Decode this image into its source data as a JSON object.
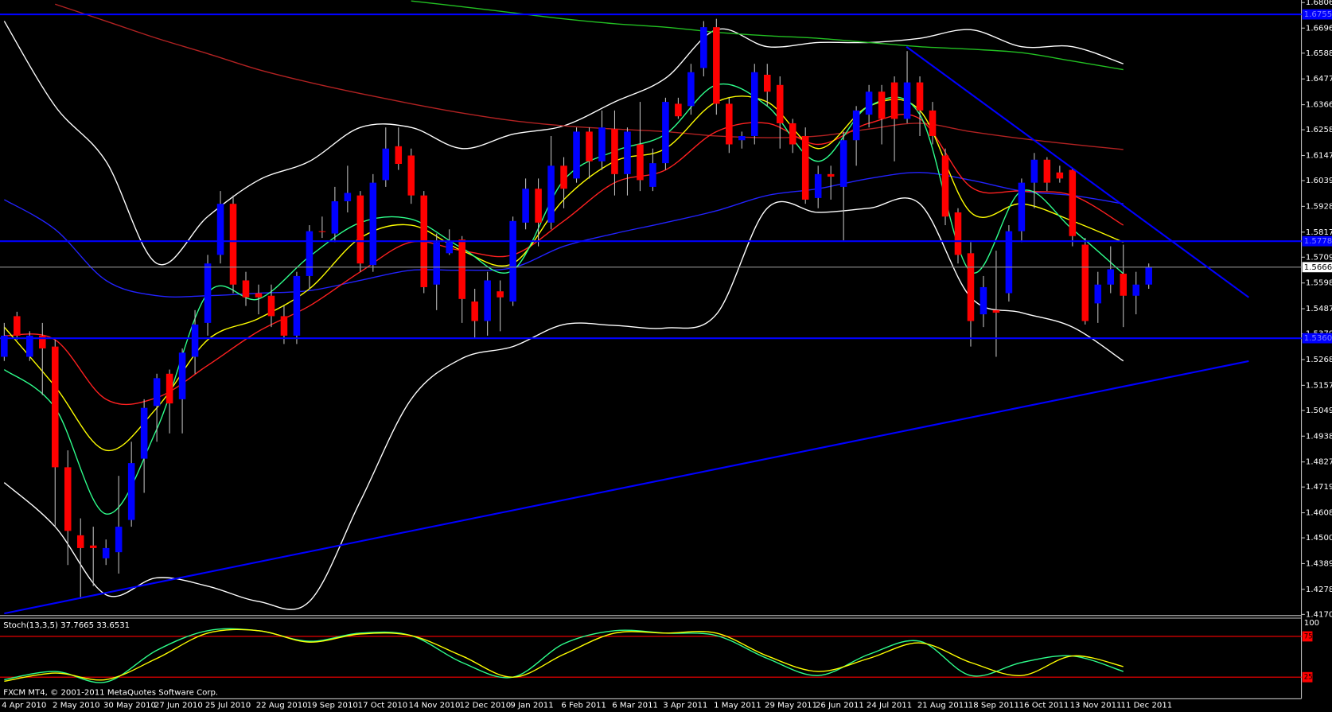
{
  "footer": "FXCM MT4, © 2001-2011 MetaQuotes Software Corp.",
  "chart_data": [
    {
      "type": "candlestick",
      "categories": [
        "4 Apr 2010",
        null,
        null,
        null,
        "2 May 2010",
        null,
        null,
        null,
        "30 May 2010",
        null,
        null,
        null,
        "27 Jun 2010",
        null,
        null,
        null,
        "25 Jul 2010",
        null,
        null,
        null,
        "22 Aug 2010",
        null,
        null,
        null,
        "19 Sep 2010",
        null,
        null,
        null,
        "17 Oct 2010",
        null,
        null,
        null,
        "14 Nov 2010",
        null,
        null,
        null,
        "12 Dec 2010",
        null,
        null,
        null,
        "9 Jan 2011",
        null,
        null,
        null,
        "6 Feb 2011",
        null,
        null,
        null,
        "6 Mar 2011",
        null,
        null,
        null,
        "3 Apr 2011",
        null,
        null,
        null,
        "1 May 2011",
        null,
        null,
        null,
        "29 May 2011",
        null,
        null,
        null,
        "26 Jun 2011",
        null,
        null,
        null,
        "24 Jul 2011",
        null,
        null,
        null,
        "21 Aug 2011",
        null,
        null,
        null,
        "18 Sep 2011",
        null,
        null,
        null,
        "16 Oct 2011",
        null,
        null,
        null,
        "13 Nov 2011",
        null,
        null,
        null,
        "11 Dec 2011",
        null,
        null
      ],
      "open": [
        1.528,
        1.5455,
        1.528,
        1.5371,
        1.5324,
        1.4804,
        1.4511,
        1.4467,
        1.4412,
        1.4438,
        1.4577,
        1.4841,
        1.5068,
        1.5207,
        1.5097,
        1.528,
        1.5426,
        1.5719,
        1.5939,
        1.5609,
        1.5554,
        1.5543,
        1.5455,
        1.5371,
        1.5628,
        1.5821,
        1.5811,
        1.595,
        1.5975,
        1.5675,
        1.6041,
        1.6187,
        1.6147,
        1.5975,
        1.5591,
        1.5726,
        1.5785,
        1.5518,
        1.5434,
        1.5562,
        1.5518,
        1.5858,
        1.6004,
        1.5858,
        1.6103,
        1.6048,
        1.625,
        1.6122,
        1.6261,
        1.6067,
        1.6195,
        1.6012,
        1.6114,
        1.637,
        1.636,
        1.6524,
        1.67,
        1.637,
        1.6213,
        1.6231,
        1.6495,
        1.6451,
        1.6286,
        1.6231,
        1.5964,
        1.6067,
        1.6012,
        1.6213,
        1.6323,
        1.6422,
        1.6462,
        1.6305,
        1.6462,
        1.6341,
        1.6147,
        1.5902,
        1.5726,
        1.5463,
        1.5481,
        1.5554,
        1.5821,
        1.603,
        1.6129,
        1.6074,
        1.6085,
        1.5763,
        1.551,
        1.5591,
        1.5638,
        1.5543,
        1.5591
      ],
      "high": [
        1.5426,
        1.5474,
        1.539,
        1.5426,
        1.5353,
        1.4877,
        1.4584,
        1.4548,
        1.4493,
        1.4767,
        1.4914,
        1.5097,
        1.5207,
        1.5225,
        1.5316,
        1.5481,
        1.5719,
        1.5994,
        1.5975,
        1.5646,
        1.5591,
        1.5591,
        1.5499,
        1.5646,
        1.5847,
        1.5884,
        1.6012,
        1.6103,
        1.5994,
        1.6067,
        1.6268,
        1.6268,
        1.6177,
        1.5994,
        1.5811,
        1.5829,
        1.58,
        1.5573,
        1.5646,
        1.5609,
        1.5884,
        1.6048,
        1.6048,
        1.6231,
        1.614,
        1.6268,
        1.6268,
        1.6341,
        1.6341,
        1.6268,
        1.6378,
        1.6177,
        1.6396,
        1.6396,
        1.6542,
        1.6726,
        1.6736,
        1.6396,
        1.625,
        1.6542,
        1.6542,
        1.6488,
        1.6305,
        1.6268,
        1.6103,
        1.6103,
        1.625,
        1.636,
        1.6451,
        1.6451,
        1.6488,
        1.6597,
        1.6488,
        1.6378,
        1.6177,
        1.592,
        1.5774,
        1.5628,
        1.5737,
        1.5847,
        1.6048,
        1.6158,
        1.614,
        1.6103,
        1.6092,
        1.5792,
        1.5646,
        1.5756,
        1.5763,
        1.5646,
        1.5682
      ],
      "low": [
        1.5262,
        1.5353,
        1.5262,
        1.5115,
        1.4548,
        1.4383,
        1.4237,
        1.4292,
        1.4383,
        1.4346,
        1.4548,
        1.4694,
        1.4914,
        1.495,
        1.495,
        1.5207,
        1.5371,
        1.5682,
        1.5554,
        1.5499,
        1.5463,
        1.5408,
        1.5335,
        1.5335,
        1.5573,
        1.5792,
        1.5774,
        1.5902,
        1.5646,
        1.5646,
        1.6012,
        1.6085,
        1.5939,
        1.5554,
        1.5481,
        1.5719,
        1.5426,
        1.536,
        1.5371,
        1.539,
        1.5499,
        1.5829,
        1.5756,
        1.5829,
        1.592,
        1.603,
        1.6048,
        1.6085,
        1.5975,
        1.5975,
        1.5994,
        1.5994,
        1.6085,
        1.6305,
        1.6323,
        1.6488,
        1.6323,
        1.6158,
        1.6177,
        1.6195,
        1.636,
        1.6177,
        1.6158,
        1.5939,
        1.592,
        1.5957,
        1.5781,
        1.6103,
        1.6268,
        1.6195,
        1.6122,
        1.6286,
        1.6231,
        1.6195,
        1.5847,
        1.5682,
        1.5324,
        1.5408,
        1.528,
        1.5518,
        1.5774,
        1.592,
        1.5994,
        1.603,
        1.5756,
        1.5419,
        1.5426,
        1.5554,
        1.5408,
        1.5463,
        1.5573
      ],
      "close": [
        1.5371,
        1.5371,
        1.5371,
        1.5316,
        1.4804,
        1.453,
        1.4456,
        1.4456,
        1.4456,
        1.4548,
        1.4822,
        1.506,
        1.5188,
        1.5079,
        1.5298,
        1.5419,
        1.5682,
        1.5939,
        1.5591,
        1.5536,
        1.5536,
        1.5455,
        1.5371,
        1.5628,
        1.5821,
        1.5818,
        1.595,
        1.5986,
        1.5682,
        1.603,
        1.6177,
        1.6111,
        1.5975,
        1.558,
        1.5774,
        1.5774,
        1.5529,
        1.5434,
        1.5609,
        1.5536,
        1.5865,
        1.6004,
        1.5858,
        1.6103,
        1.6004,
        1.625,
        1.6122,
        1.6268,
        1.6067,
        1.625,
        1.6041,
        1.6114,
        1.6378,
        1.6316,
        1.6506,
        1.67,
        1.637,
        1.6195,
        1.6231,
        1.6506,
        1.6422,
        1.6286,
        1.6195,
        1.5957,
        1.6067,
        1.6056,
        1.6213,
        1.6341,
        1.6422,
        1.6305,
        1.6305,
        1.6462,
        1.6341,
        1.6231,
        1.5884,
        1.5719,
        1.5434,
        1.558,
        1.547,
        1.5821,
        1.603,
        1.6129,
        1.603,
        1.6048,
        1.58,
        1.5434,
        1.5591,
        1.5657,
        1.5543,
        1.5591,
        1.5666
      ],
      "up_color": "#0000ff",
      "down_color": "#ff0000",
      "wick_color": "#bfbfbf",
      "indicator_x": [
        "4 Apr 2010",
        "2 May 2010",
        "30 May 2010",
        "27 Jun 2010",
        "25 Jul 2010",
        "22 Aug 2010",
        "19 Sep 2010",
        "17 Oct 2010",
        "14 Nov 2010",
        "12 Dec 2010",
        "9 Jan 2011",
        "6 Feb 2011",
        "6 Mar 2011",
        "3 Apr 2011",
        "1 May 2011",
        "29 May 2011",
        "26 Jun 2011",
        "24 Jul 2011",
        "21 Aug 2011",
        "18 Sep 2011",
        "16 Oct 2011",
        "13 Nov 2011",
        "11 Dec 2011"
      ],
      "indicators": [
        {
          "color": "#ffffff",
          "values": [
            1.6726,
            1.636,
            1.6122,
            1.5682,
            1.5884,
            1.6041,
            1.6122,
            1.6268,
            1.6268,
            1.6177,
            1.6239,
            1.6275,
            1.6378,
            1.648,
            1.6689,
            1.6616,
            1.6634,
            1.6634,
            1.6652,
            1.6689,
            1.6616,
            1.6616,
            1.6542
          ]
        },
        {
          "color": "#ffffff",
          "values": [
            1.4738,
            1.4548,
            1.4255,
            1.4328,
            1.4292,
            1.4226,
            1.4226,
            1.4658,
            1.5097,
            1.5273,
            1.5324,
            1.5419,
            1.5415,
            1.5404,
            1.5463,
            1.592,
            1.5902,
            1.592,
            1.5939,
            1.5536,
            1.547,
            1.5408,
            1.5262
          ]
        },
        {
          "color": "#2222ff",
          "values": [
            1.5957,
            1.5829,
            1.5609,
            1.5543,
            1.5543,
            1.5554,
            1.5565,
            1.5609,
            1.5653,
            1.5653,
            1.5664,
            1.5756,
            1.5811,
            1.5858,
            1.5909,
            1.5975,
            1.6004,
            1.6048,
            1.6074,
            1.6041,
            1.5994,
            1.5975,
            1.5939
          ]
        },
        {
          "color": "#b22222",
          "values": [
            null,
            1.6799,
            1.6726,
            1.6652,
            1.6586,
            1.6517,
            1.6462,
            1.6414,
            1.637,
            1.633,
            1.6297,
            1.6275,
            1.6261,
            1.625,
            1.6231,
            1.6224,
            1.6231,
            1.6261,
            1.6286,
            1.625,
            1.622,
            1.6195,
            1.6173
          ]
        },
        {
          "color": "#22c022",
          "values": [
            null,
            null,
            null,
            null,
            null,
            null,
            null,
            null,
            1.6813,
            1.6788,
            1.6762,
            1.6736,
            1.6715,
            1.67,
            1.6678,
            1.6663,
            1.6652,
            1.6634,
            1.6616,
            1.6605,
            1.659,
            1.6554,
            1.6517
          ]
        },
        {
          "color": "#ff2020",
          "values": [
            1.5371,
            1.5353,
            1.5097,
            1.5104,
            1.5243,
            1.539,
            1.5499,
            1.5646,
            1.5774,
            1.5737,
            1.5719,
            1.5865,
            1.603,
            1.6085,
            1.625,
            1.6286,
            1.6195,
            1.6286,
            1.6305,
            1.6012,
            1.5994,
            1.5975,
            1.5847
          ]
        },
        {
          "color": "#ffff00",
          "values": [
            1.5408,
            1.5152,
            1.4877,
            1.506,
            1.5353,
            1.5445,
            1.5573,
            1.5792,
            1.5847,
            1.5737,
            1.5682,
            1.5957,
            1.6122,
            1.6177,
            1.6378,
            1.6378,
            1.6177,
            1.636,
            1.6341,
            1.5902,
            1.5939,
            1.5865,
            1.5774
          ]
        },
        {
          "color": "#2eff8c",
          "values": [
            1.5225,
            1.506,
            1.4603,
            1.4969,
            1.5554,
            1.5529,
            1.5712,
            1.5858,
            1.5873,
            1.5748,
            1.5653,
            1.6041,
            1.6166,
            1.6239,
            1.6451,
            1.636,
            1.6122,
            1.636,
            1.6323,
            1.5646,
            1.5994,
            1.5829,
            1.5638
          ]
        }
      ],
      "hlines": [
        {
          "value": 1.6755,
          "label": "1.67550"
        },
        {
          "value": 1.5778,
          "label": "1.57780"
        },
        {
          "value": 1.536,
          "label": "1.53600"
        }
      ],
      "hline_color": "#0000ff",
      "current_price": {
        "value": 1.56661,
        "label": "1.56661"
      },
      "ylim": [
        1.4167,
        1.6817
      ],
      "yticks": [
        {
          "value": 1.6806,
          "label": "1.68060"
        },
        {
          "value": 1.6696,
          "label": "1.66960"
        },
        {
          "value": 1.6588,
          "label": "1.65880"
        },
        {
          "value": 1.6477,
          "label": "1.64770"
        },
        {
          "value": 1.6366,
          "label": "1.63660"
        },
        {
          "value": 1.6258,
          "label": "1.62580"
        },
        {
          "value": 1.6147,
          "label": "1.61470"
        },
        {
          "value": 1.6039,
          "label": "1.60390"
        },
        {
          "value": 1.5928,
          "label": "1.59280"
        },
        {
          "value": 1.5817,
          "label": "1.58170"
        },
        {
          "value": 1.5709,
          "label": "1.57090"
        },
        {
          "value": 1.5598,
          "label": "1.55980"
        },
        {
          "value": 1.5487,
          "label": "1.54870"
        },
        {
          "value": 1.5379,
          "label": "1.53790"
        },
        {
          "value": 1.5268,
          "label": "1.52680"
        },
        {
          "value": 1.5157,
          "label": "1.51570"
        },
        {
          "value": 1.5049,
          "label": "1.50490"
        },
        {
          "value": 1.4938,
          "label": "1.49380"
        },
        {
          "value": 1.4827,
          "label": "1.48270"
        },
        {
          "value": 1.4719,
          "label": "1.47190"
        },
        {
          "value": 1.4608,
          "label": "1.46080"
        },
        {
          "value": 1.45,
          "label": "1.45000"
        },
        {
          "value": 1.4389,
          "label": "1.43890"
        },
        {
          "value": 1.4278,
          "label": "1.42780"
        },
        {
          "value": 1.417,
          "label": "1.41700"
        }
      ]
    },
    {
      "type": "line",
      "title": "Stoch(13,3,5) 37.7665 33.6531",
      "x": [
        "4 Apr 2010",
        "2 May 2010",
        "30 May 2010",
        "27 Jun 2010",
        "25 Jul 2010",
        "22 Aug 2010",
        "19 Sep 2010",
        "17 Oct 2010",
        "14 Nov 2010",
        "12 Dec 2010",
        "9 Jan 2011",
        "6 Feb 2011",
        "6 Mar 2011",
        "3 Apr 2011",
        "1 May 2011",
        "29 May 2011",
        "26 Jun 2011",
        "24 Jul 2011",
        "21 Aug 2011",
        "18 Sep 2011",
        "16 Oct 2011",
        "13 Nov 2011",
        "11 Dec 2011"
      ],
      "series": [
        {
          "color": "#2eff8c",
          "values": [
            22,
            32,
            19,
            58,
            82,
            82,
            69,
            79,
            76,
            43,
            25,
            66,
            82,
            79,
            76,
            48,
            27,
            53,
            69,
            27,
            43,
            51,
            32
          ]
        },
        {
          "color": "#ffff00",
          "values": [
            20,
            30,
            22,
            48,
            79,
            82,
            68,
            78,
            76,
            51,
            25,
            53,
            79,
            79,
            79,
            51,
            32,
            48,
            67,
            43,
            27,
            51,
            38
          ]
        }
      ],
      "ylim": [
        0,
        100
      ],
      "yticks": [
        100,
        75,
        25
      ],
      "levels": [
        75,
        25
      ],
      "level_color": "#ff0000"
    }
  ]
}
